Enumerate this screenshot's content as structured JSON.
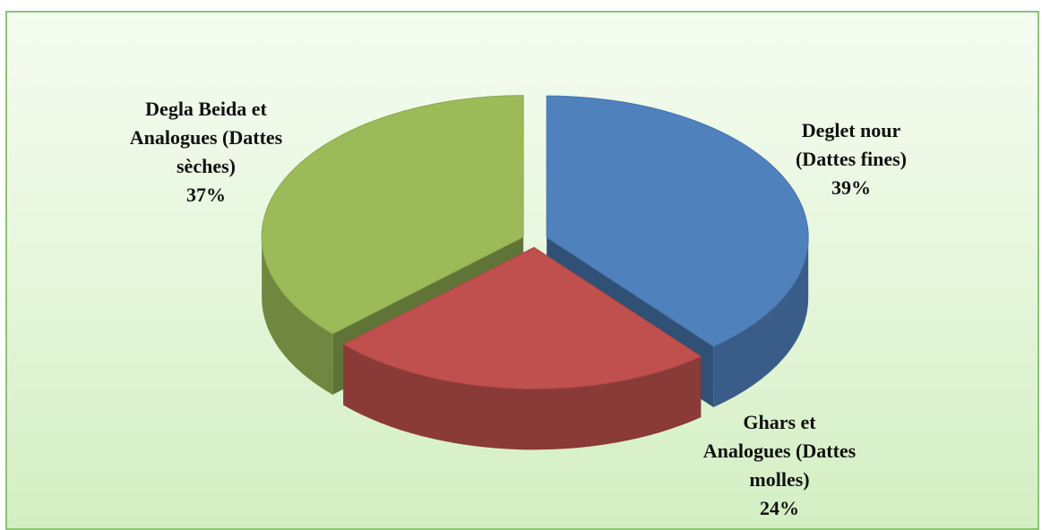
{
  "chart_data": {
    "type": "pie",
    "categories": [
      "Deglet nour\n(Dattes fines)",
      "Ghars  et\nAnalogues (Dattes\nmolles)",
      "Degla Beida et\nAnalogues (Dattes\nsèches)"
    ],
    "values": [
      39,
      24,
      37
    ],
    "value_labels": [
      "39%",
      "24%",
      "37%"
    ],
    "colors": [
      "#4f81bd",
      "#c0504d",
      "#9bbb59"
    ]
  }
}
